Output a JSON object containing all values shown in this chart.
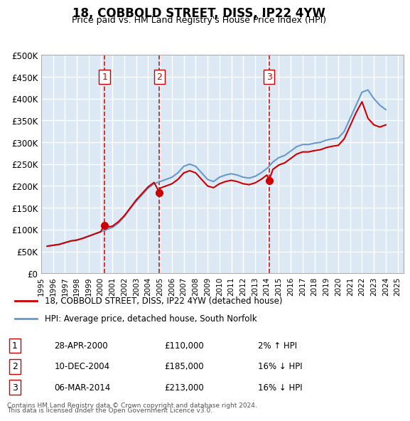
{
  "title": "18, COBBOLD STREET, DISS, IP22 4YW",
  "subtitle": "Price paid vs. HM Land Registry's House Price Index (HPI)",
  "ylabel_ticks": [
    "£0",
    "£50K",
    "£100K",
    "£150K",
    "£200K",
    "£250K",
    "£300K",
    "£350K",
    "£400K",
    "£450K",
    "£500K"
  ],
  "ytick_vals": [
    0,
    50000,
    100000,
    150000,
    200000,
    250000,
    300000,
    350000,
    400000,
    450000,
    500000
  ],
  "ylim": [
    0,
    500000
  ],
  "xlim_start": 1995.0,
  "xlim_end": 2025.5,
  "background_color": "#dce9f5",
  "plot_bg": "#dce9f5",
  "grid_color": "#ffffff",
  "red_line_color": "#cc0000",
  "blue_line_color": "#6699cc",
  "vline_color": "#cc0000",
  "marker_color": "#cc0000",
  "transactions": [
    {
      "num": 1,
      "year": 2000.33,
      "price": 110000,
      "date": "28-APR-2000",
      "pct": "2%",
      "dir": "↑"
    },
    {
      "num": 2,
      "year": 2004.95,
      "price": 185000,
      "date": "10-DEC-2004",
      "pct": "16%",
      "dir": "↓"
    },
    {
      "num": 3,
      "year": 2014.18,
      "price": 213000,
      "date": "06-MAR-2014",
      "pct": "16%",
      "dir": "↓"
    }
  ],
  "legend_line1": "18, COBBOLD STREET, DISS, IP22 4YW (detached house)",
  "legend_line2": "HPI: Average price, detached house, South Norfolk",
  "footer1": "Contains HM Land Registry data © Crown copyright and database right 2024.",
  "footer2": "This data is licensed under the Open Government Licence v3.0.",
  "hpi_data": {
    "years": [
      1995.5,
      1996.0,
      1996.5,
      1997.0,
      1997.5,
      1998.0,
      1998.5,
      1999.0,
      1999.5,
      2000.0,
      2000.5,
      2001.0,
      2001.5,
      2002.0,
      2002.5,
      2003.0,
      2003.5,
      2004.0,
      2004.5,
      2005.0,
      2005.5,
      2006.0,
      2006.5,
      2007.0,
      2007.5,
      2008.0,
      2008.5,
      2009.0,
      2009.5,
      2010.0,
      2010.5,
      2011.0,
      2011.5,
      2012.0,
      2012.5,
      2013.0,
      2013.5,
      2014.0,
      2014.5,
      2015.0,
      2015.5,
      2016.0,
      2016.5,
      2017.0,
      2017.5,
      2018.0,
      2018.5,
      2019.0,
      2019.5,
      2020.0,
      2020.5,
      2021.0,
      2021.5,
      2022.0,
      2022.5,
      2023.0,
      2023.5,
      2024.0
    ],
    "values": [
      62000,
      64000,
      66000,
      70000,
      74000,
      76000,
      80000,
      85000,
      90000,
      95000,
      100000,
      105000,
      115000,
      130000,
      148000,
      165000,
      180000,
      195000,
      205000,
      210000,
      215000,
      220000,
      230000,
      245000,
      250000,
      245000,
      230000,
      215000,
      210000,
      220000,
      225000,
      228000,
      225000,
      220000,
      218000,
      222000,
      230000,
      240000,
      255000,
      265000,
      270000,
      280000,
      290000,
      295000,
      295000,
      298000,
      300000,
      305000,
      308000,
      310000,
      325000,
      355000,
      385000,
      415000,
      420000,
      400000,
      385000,
      375000
    ]
  },
  "red_data": {
    "years": [
      1995.5,
      1996.0,
      1996.5,
      1997.0,
      1997.5,
      1998.0,
      1998.5,
      1999.0,
      1999.5,
      2000.0,
      2000.33,
      2000.5,
      2001.0,
      2001.5,
      2002.0,
      2002.5,
      2003.0,
      2003.5,
      2004.0,
      2004.5,
      2004.95,
      2005.0,
      2005.5,
      2006.0,
      2006.5,
      2007.0,
      2007.5,
      2008.0,
      2008.5,
      2009.0,
      2009.5,
      2010.0,
      2010.5,
      2011.0,
      2011.5,
      2012.0,
      2012.5,
      2013.0,
      2013.5,
      2014.0,
      2014.18,
      2014.5,
      2015.0,
      2015.5,
      2016.0,
      2016.5,
      2017.0,
      2017.5,
      2018.0,
      2018.5,
      2019.0,
      2019.5,
      2020.0,
      2020.5,
      2021.0,
      2021.5,
      2022.0,
      2022.5,
      2023.0,
      2023.5,
      2024.0
    ],
    "values": [
      62000,
      64000,
      66000,
      70000,
      74000,
      76000,
      80000,
      85000,
      90000,
      95000,
      110000,
      105000,
      108000,
      118000,
      132000,
      150000,
      168000,
      183000,
      198000,
      208000,
      185000,
      195000,
      200000,
      205000,
      215000,
      230000,
      235000,
      230000,
      215000,
      200000,
      196000,
      205000,
      210000,
      213000,
      210000,
      205000,
      203000,
      207000,
      215000,
      225000,
      213000,
      238000,
      248000,
      253000,
      263000,
      273000,
      278000,
      278000,
      281000,
      283000,
      288000,
      291000,
      293000,
      308000,
      338000,
      368000,
      393000,
      355000,
      340000,
      335000,
      340000
    ]
  }
}
